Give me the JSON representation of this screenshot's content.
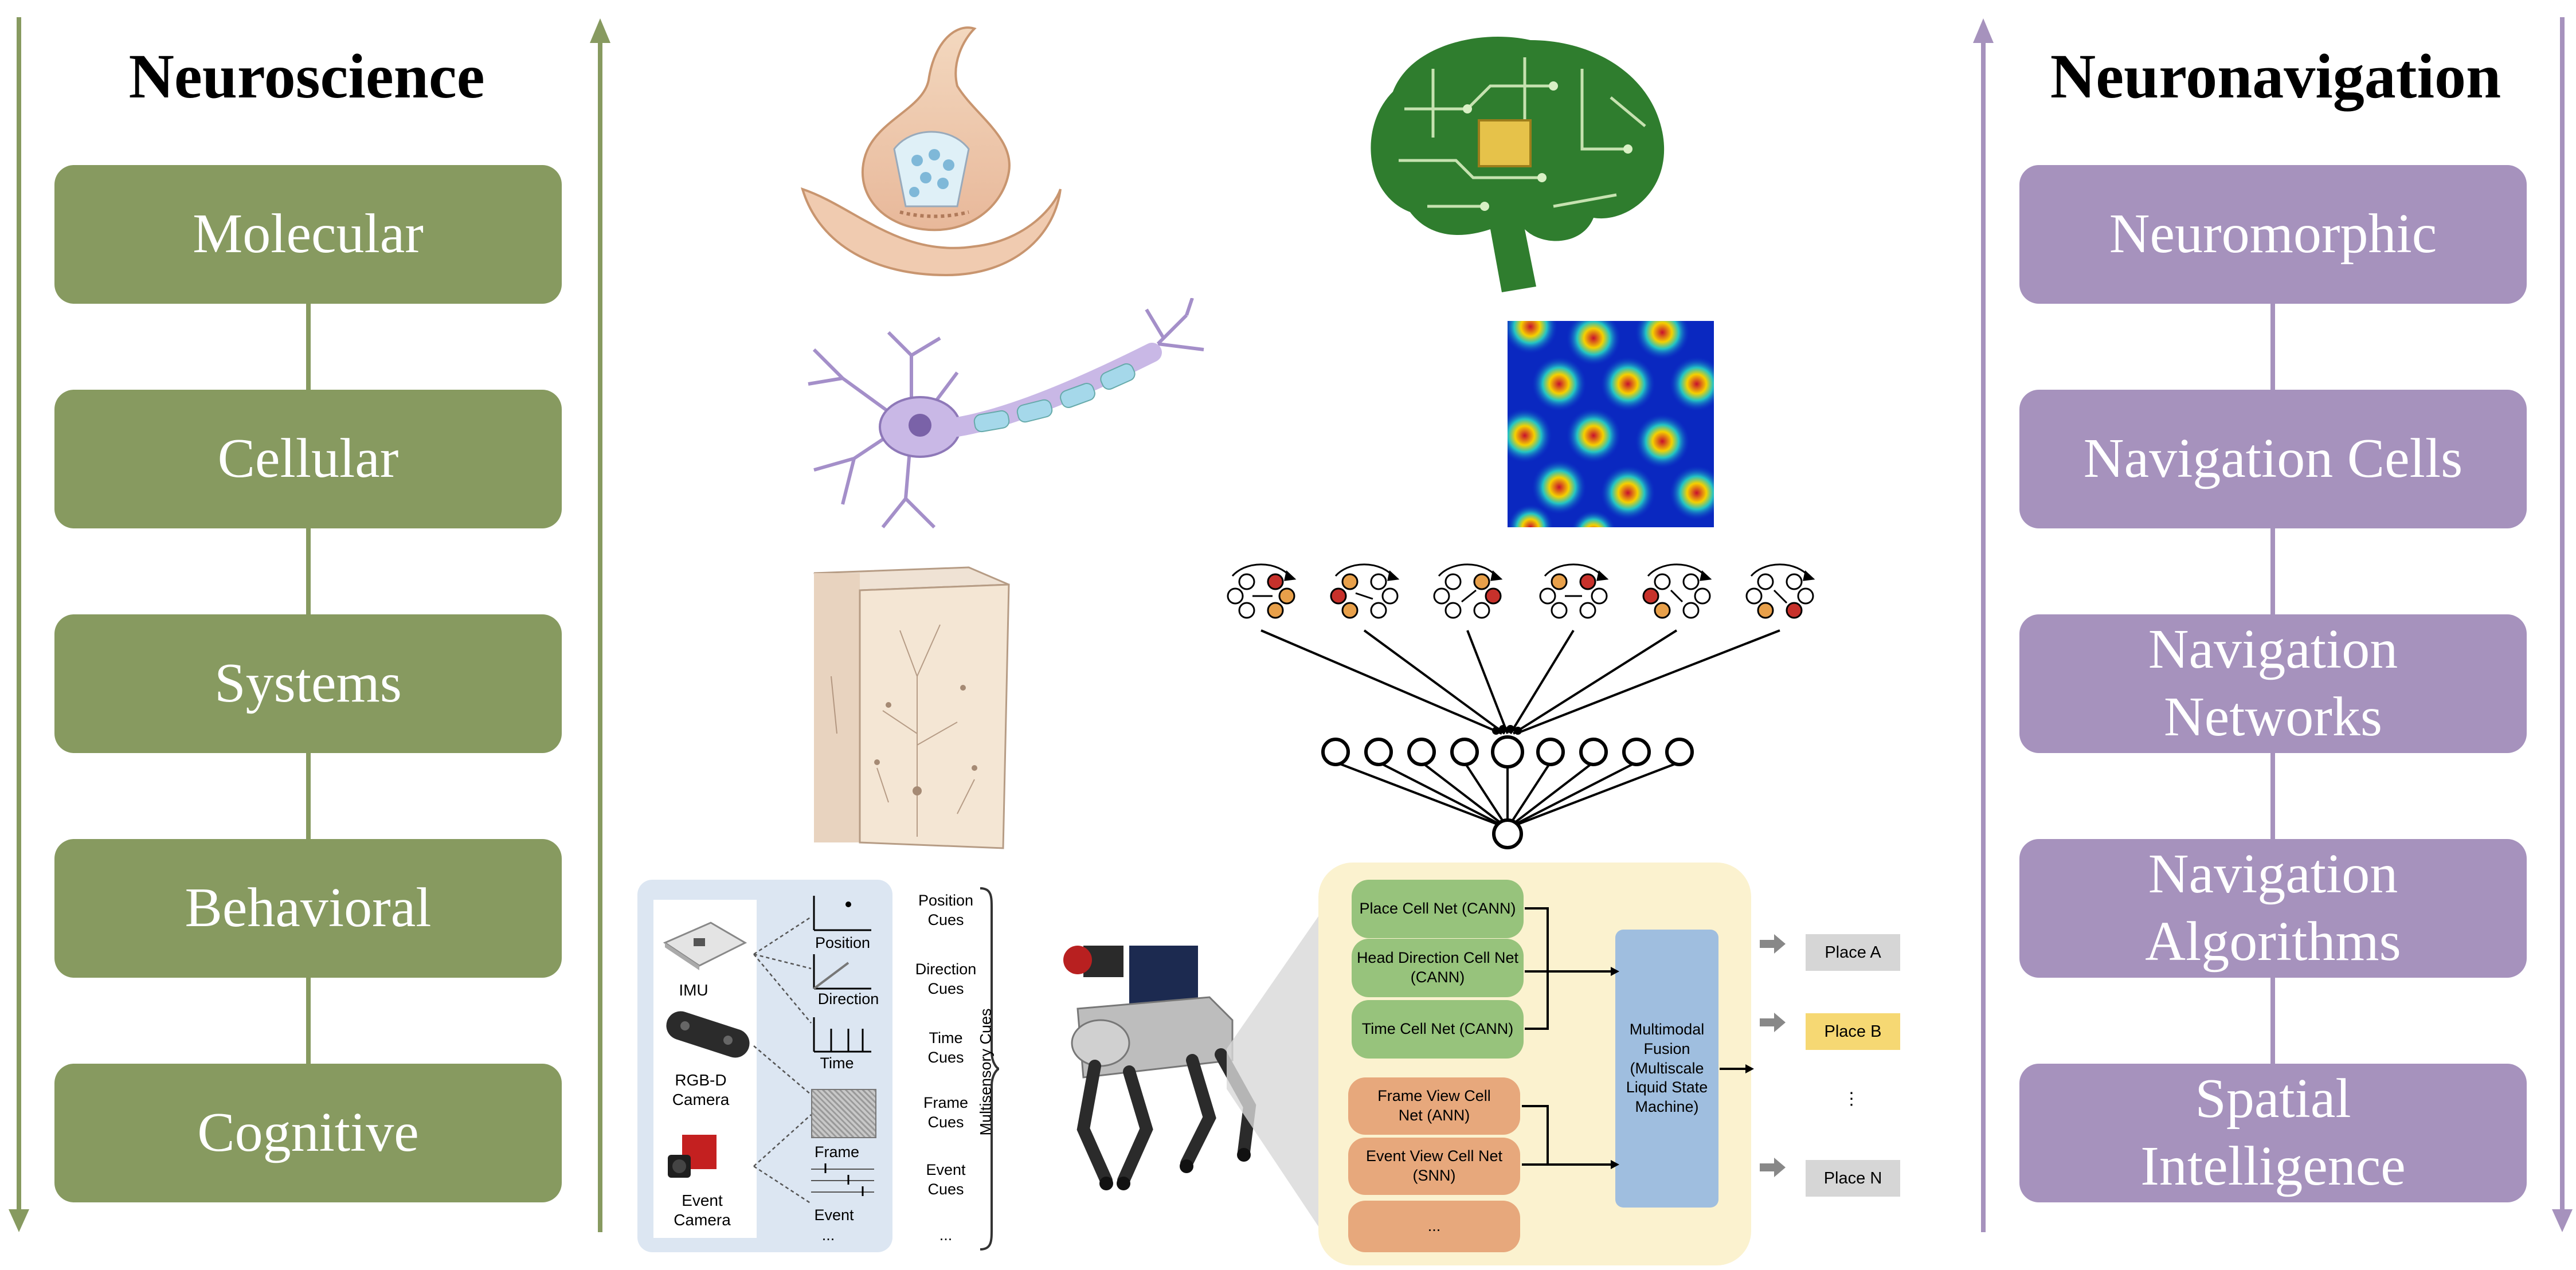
{
  "left": {
    "title": "Neuroscience",
    "levels": [
      "Molecular",
      "Cellular",
      "Systems",
      "Behavioral",
      "Cognitive"
    ],
    "color": "#879a60"
  },
  "right": {
    "title": "Neuronavigation",
    "levels": [
      "Neuromorphic",
      "Navigation Cells",
      "Navigation Networks",
      "Navigation Algorithms",
      "Spatial Intelligence"
    ],
    "color": "#a692bd"
  },
  "sensors": {
    "devices": [
      "IMU",
      "RGB-D Camera",
      "Event Camera"
    ],
    "outputs": [
      "Position",
      "Direction",
      "Time",
      "Frame",
      "Event",
      "..."
    ],
    "cues": [
      "Position Cues",
      "Direction Cues",
      "Time Cues",
      "Frame Cues",
      "Event Cues",
      "..."
    ],
    "cues_brace_label": "Multisensory Cues"
  },
  "fusion": {
    "cann_nets": [
      "Place Cell Net (CANN)",
      "Head Direction Cell Net (CANN)",
      "Time Cell Net (CANN)"
    ],
    "view_nets": [
      "Frame View Cell Net (ANN)",
      "Event View Cell Net (SNN)",
      "..."
    ],
    "fusion_block": "Multimodal Fusion (Multiscale Liquid State Machine)",
    "places": [
      "Place A",
      "Place B",
      "⋮",
      "Place N"
    ],
    "highlight_color": "#f6d873",
    "panel_color": "#fbf2cf",
    "cann_color": "#97c37c",
    "view_color": "#e7a87c",
    "fusion_color": "#9fbedf"
  },
  "illustrations": [
    "synapse-icon",
    "neuron-icon",
    "cortical-column-icon",
    "circuit-brain-icon",
    "grid-cell-heatmap-icon",
    "attractor-network-icon",
    "quadruped-robot-icon"
  ]
}
